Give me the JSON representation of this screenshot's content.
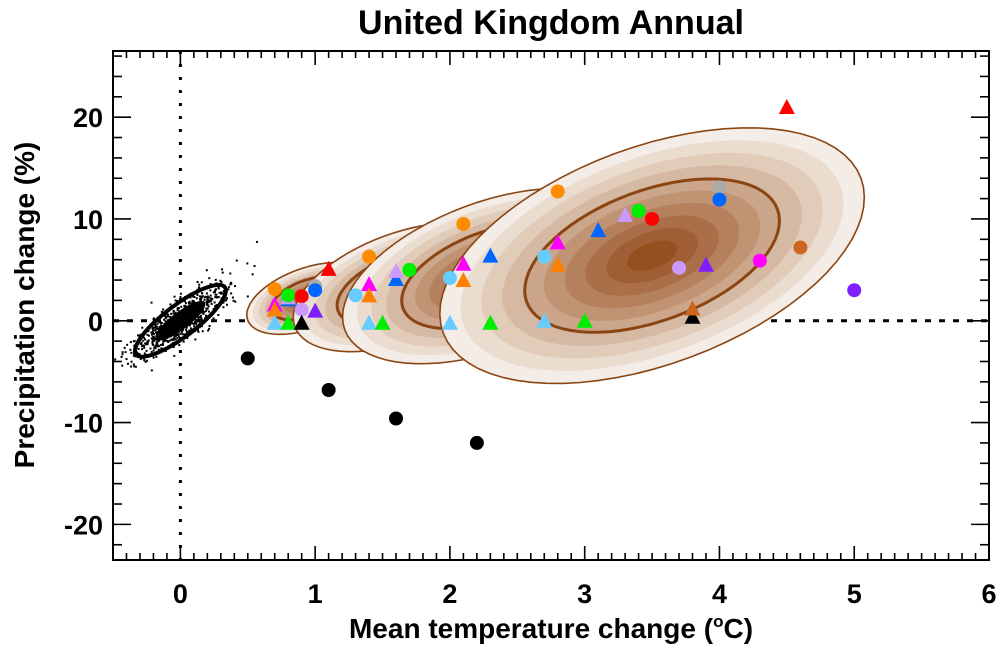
{
  "chart_data": {
    "type": "scatter",
    "title": "United Kingdom Annual",
    "xlabel": "Mean temperature change (",
    "xlabel_sup": "o",
    "xlabel_end": "C)",
    "ylabel": "Precipitation change (%)",
    "xlim": [
      -0.5,
      6
    ],
    "ylim": [
      -23.5,
      26.5
    ],
    "xticks": [
      0,
      1,
      2,
      3,
      4,
      5,
      6
    ],
    "xtick_labels": [
      "0",
      "1",
      "2",
      "3",
      "4",
      "5",
      "6"
    ],
    "yticks": [
      -20,
      -10,
      0,
      10,
      20
    ],
    "ytick_labels": [
      "-20",
      "-10",
      "0",
      "10",
      "20"
    ],
    "x_minor_step": 0.1,
    "y_minor_step": 2,
    "reference_lines": {
      "x": 0,
      "y": 0,
      "style": "dotted"
    },
    "colors": {
      "ellipse_levels": [
        "#f4ece6",
        "#ebdcd0",
        "#e1cbb9",
        "#d6b9a2",
        "#cba68a",
        "#c09373",
        "#b5815d",
        "#aa6f48",
        "#9f5e33",
        "#94501f"
      ],
      "ellipse_outline": "#8b4513",
      "contour": "#8b4513"
    },
    "natural_variability": {
      "center": [
        0,
        0
      ],
      "major": [
        0.33,
        3.3
      ],
      "minor": [
        0.07,
        -1.25
      ],
      "color": "#000000"
    },
    "distributions": [
      {
        "name": "distribution-1",
        "center": [
          0.95,
          2.2
        ],
        "major": [
          0.45,
          2.15
        ],
        "minor": [
          0.08,
          -2.8
        ]
      },
      {
        "name": "distribution-2",
        "center": [
          1.65,
          3.3
        ],
        "major": [
          0.8,
          3.9
        ],
        "minor": [
          0.14,
          -5.0
        ]
      },
      {
        "name": "distribution-3",
        "center": [
          2.3,
          4.4
        ],
        "major": [
          1.08,
          5.3
        ],
        "minor": [
          0.19,
          -6.8
        ]
      },
      {
        "name": "distribution-4",
        "center": [
          3.5,
          6.4
        ],
        "major": [
          1.55,
          7.6
        ],
        "minor": [
          0.28,
          -10.0
        ]
      }
    ],
    "series": [
      {
        "name": "black-circles",
        "marker": "circle",
        "color": "#000000",
        "points": [
          [
            0.5,
            -3.7
          ],
          [
            1.1,
            -6.8
          ],
          [
            1.6,
            -9.6
          ],
          [
            2.2,
            -12.0
          ]
        ]
      },
      {
        "name": "orange-circles",
        "marker": "circle",
        "color": "#ff8c00",
        "points": [
          [
            0.7,
            3.1
          ],
          [
            1.4,
            6.3
          ],
          [
            2.1,
            9.5
          ],
          [
            2.8,
            12.7
          ]
        ]
      },
      {
        "name": "magenta-triangles",
        "marker": "triangle",
        "color": "#ff00ff",
        "points": [
          [
            0.7,
            1.6
          ],
          [
            1.4,
            3.6
          ],
          [
            2.1,
            5.6
          ],
          [
            2.8,
            7.7
          ]
        ]
      },
      {
        "name": "orange-triangles",
        "marker": "triangle",
        "color": "#ff7f00",
        "points": [
          [
            0.7,
            1.1
          ],
          [
            1.4,
            2.5
          ],
          [
            2.1,
            4.0
          ],
          [
            2.8,
            5.5
          ]
        ]
      },
      {
        "name": "lightblue-triangles",
        "marker": "triangle",
        "color": "#66ccff",
        "points": [
          [
            0.7,
            -0.2
          ],
          [
            1.4,
            -0.2
          ],
          [
            2.0,
            -0.2
          ],
          [
            2.7,
            0.0
          ]
        ]
      },
      {
        "name": "lightblue-circles",
        "marker": "circle",
        "color": "#66ccff",
        "points": [
          [
            1.3,
            2.5
          ],
          [
            2.0,
            4.2
          ],
          [
            2.7,
            6.3
          ]
        ]
      },
      {
        "name": "green-triangles",
        "marker": "triangle",
        "color": "#00ee00",
        "points": [
          [
            0.8,
            -0.2
          ],
          [
            1.5,
            -0.2
          ],
          [
            2.3,
            -0.2
          ],
          [
            3.0,
            0.0
          ]
        ]
      },
      {
        "name": "blue-triangles",
        "marker": "triangle",
        "color": "#0066ff",
        "points": [
          [
            0.8,
            2.1
          ],
          [
            1.6,
            4.1
          ],
          [
            2.3,
            6.4
          ],
          [
            3.1,
            8.9
          ]
        ]
      },
      {
        "name": "lavender-triangles",
        "marker": "triangle",
        "color": "#cc99ff",
        "points": [
          [
            0.8,
            2.3
          ],
          [
            1.6,
            4.9
          ],
          [
            3.3,
            10.4
          ]
        ]
      },
      {
        "name": "green-circles",
        "marker": "circle",
        "color": "#00ee00",
        "points": [
          [
            0.8,
            2.5
          ],
          [
            1.7,
            5.0
          ],
          [
            3.4,
            10.8
          ]
        ]
      },
      {
        "name": "red-circles",
        "marker": "circle",
        "color": "#ff0000",
        "points": [
          [
            0.9,
            2.4
          ],
          [
            3.5,
            10.0
          ]
        ]
      },
      {
        "name": "grey-circles",
        "marker": "circle",
        "color": "#aaaaaa",
        "points": [
          [
            1.0,
            3.4
          ],
          [
            4.0,
            13.1
          ]
        ]
      },
      {
        "name": "blue-circles",
        "marker": "circle",
        "color": "#0066ff",
        "points": [
          [
            1.0,
            3.0
          ],
          [
            4.0,
            11.9
          ]
        ]
      },
      {
        "name": "lavender-circles",
        "marker": "circle",
        "color": "#cc99ff",
        "points": [
          [
            0.9,
            1.1
          ],
          [
            3.7,
            5.2
          ]
        ]
      },
      {
        "name": "purple-triangles",
        "marker": "triangle",
        "color": "#7f1fff",
        "points": [
          [
            1.0,
            1.0
          ],
          [
            3.9,
            5.5
          ]
        ]
      },
      {
        "name": "black-triangles",
        "marker": "triangle",
        "color": "#000000",
        "points": [
          [
            0.9,
            -0.2
          ],
          [
            3.8,
            0.4
          ]
        ]
      },
      {
        "name": "brown-triangles",
        "marker": "triangle",
        "color": "#cc6622",
        "points": [
          [
            3.8,
            1.2
          ]
        ]
      },
      {
        "name": "red-triangles",
        "marker": "triangle",
        "color": "#ff0000",
        "points": [
          [
            1.1,
            5.1
          ],
          [
            4.5,
            21.0
          ]
        ]
      },
      {
        "name": "magenta-circles",
        "marker": "circle",
        "color": "#ff00ff",
        "points": [
          [
            4.3,
            5.9
          ]
        ]
      },
      {
        "name": "brown-circles",
        "marker": "circle",
        "color": "#cc6622",
        "points": [
          [
            4.6,
            7.2
          ]
        ]
      },
      {
        "name": "purple-circles",
        "marker": "circle",
        "color": "#7f1fff",
        "points": [
          [
            5.0,
            3.0
          ]
        ]
      }
    ]
  }
}
